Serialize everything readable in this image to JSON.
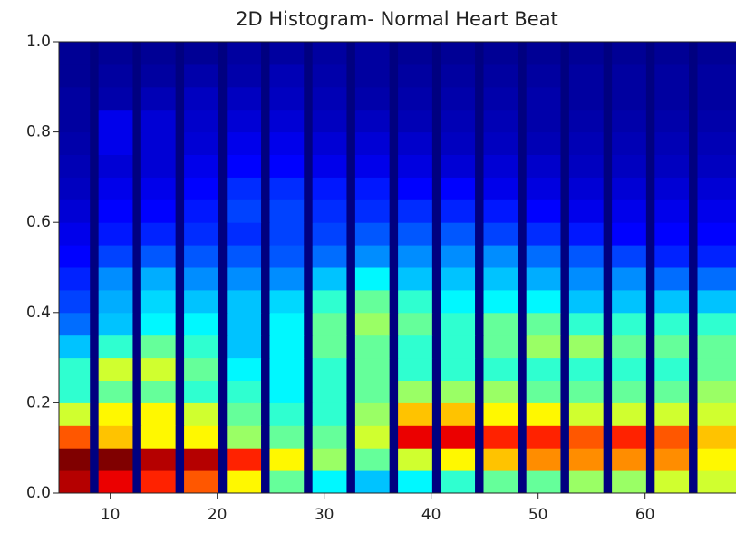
{
  "chart_data": {
    "type": "hist2d",
    "title": "2D Histogram- Normal Heart Beat",
    "colormap": "jet",
    "xlim": [
      5.2,
      68.5
    ],
    "ylim": [
      0,
      1
    ],
    "xticks": [
      10,
      20,
      30,
      40,
      50,
      60
    ],
    "yticks": [
      {
        "value": 0,
        "label": "0.0"
      },
      0.2,
      0.4,
      0.6,
      0.8,
      {
        "value": 1,
        "label": "1.0"
      }
    ],
    "xbins": [
      5.2,
      8.1,
      8.9,
      12.1,
      12.9,
      16.1,
      16.9,
      20.1,
      20.9,
      24.1,
      24.9,
      28.1,
      28.9,
      32.1,
      32.9,
      36.1,
      36.9,
      40.1,
      40.9,
      44.1,
      44.9,
      48.1,
      48.9,
      52.1,
      52.9,
      56.1,
      56.9,
      60.1,
      60.9,
      64.1,
      64.9,
      68.5
    ],
    "ybins": [
      0,
      0.05,
      0.1,
      0.15,
      0.2,
      0.25,
      0.3,
      0.35,
      0.4,
      0.45,
      0.5,
      0.55,
      0.6,
      0.65,
      0.7,
      0.75,
      0.8,
      0.85,
      0.9,
      0.95,
      1
    ],
    "z": [
      [
        90,
        0,
        85,
        0,
        80,
        0,
        75,
        0,
        60,
        0,
        45,
        0,
        35,
        0,
        30,
        0,
        35,
        0,
        40,
        0,
        45,
        0,
        45,
        0,
        50,
        0,
        50,
        0,
        55,
        0,
        55
      ],
      [
        95,
        0,
        95,
        0,
        90,
        0,
        90,
        0,
        80,
        0,
        60,
        0,
        50,
        0,
        45,
        0,
        55,
        0,
        60,
        0,
        65,
        0,
        70,
        0,
        70,
        0,
        70,
        0,
        70,
        0,
        60
      ],
      [
        75,
        0,
        65,
        0,
        60,
        0,
        60,
        0,
        50,
        0,
        45,
        0,
        45,
        0,
        55,
        0,
        85,
        0,
        85,
        0,
        80,
        0,
        80,
        0,
        75,
        0,
        80,
        0,
        75,
        0,
        65
      ],
      [
        55,
        0,
        60,
        0,
        60,
        0,
        55,
        0,
        45,
        0,
        40,
        0,
        40,
        0,
        50,
        0,
        65,
        0,
        65,
        0,
        60,
        0,
        60,
        0,
        55,
        0,
        55,
        0,
        55,
        0,
        55
      ],
      [
        40,
        0,
        45,
        0,
        45,
        0,
        40,
        0,
        40,
        0,
        35,
        0,
        40,
        0,
        45,
        0,
        50,
        0,
        50,
        0,
        50,
        0,
        45,
        0,
        45,
        0,
        45,
        0,
        45,
        0,
        50
      ],
      [
        40,
        0,
        55,
        0,
        55,
        0,
        45,
        0,
        35,
        0,
        35,
        0,
        40,
        0,
        45,
        0,
        40,
        0,
        40,
        0,
        40,
        0,
        40,
        0,
        40,
        0,
        40,
        0,
        40,
        0,
        45
      ],
      [
        30,
        0,
        40,
        0,
        45,
        0,
        40,
        0,
        30,
        0,
        35,
        0,
        45,
        0,
        45,
        0,
        40,
        0,
        40,
        0,
        45,
        0,
        50,
        0,
        50,
        0,
        45,
        0,
        45,
        0,
        45
      ],
      [
        22,
        0,
        30,
        0,
        35,
        0,
        35,
        0,
        30,
        0,
        35,
        0,
        45,
        0,
        50,
        0,
        45,
        0,
        40,
        0,
        45,
        0,
        45,
        0,
        40,
        0,
        40,
        0,
        40,
        0,
        40
      ],
      [
        18,
        0,
        28,
        0,
        32,
        0,
        30,
        0,
        30,
        0,
        32,
        0,
        40,
        0,
        45,
        0,
        40,
        0,
        35,
        0,
        35,
        0,
        35,
        0,
        30,
        0,
        30,
        0,
        30,
        0,
        30
      ],
      [
        15,
        0,
        25,
        0,
        28,
        0,
        25,
        0,
        25,
        0,
        25,
        0,
        30,
        0,
        35,
        0,
        30,
        0,
        30,
        0,
        30,
        0,
        28,
        0,
        25,
        0,
        25,
        0,
        22,
        0,
        22
      ],
      [
        12,
        0,
        18,
        0,
        20,
        0,
        20,
        0,
        20,
        0,
        20,
        0,
        22,
        0,
        25,
        0,
        25,
        0,
        25,
        0,
        25,
        0,
        22,
        0,
        20,
        0,
        18,
        0,
        15,
        0,
        15
      ],
      [
        10,
        0,
        14,
        0,
        15,
        0,
        16,
        0,
        16,
        0,
        18,
        0,
        18,
        0,
        20,
        0,
        20,
        0,
        20,
        0,
        18,
        0,
        16,
        0,
        14,
        0,
        12,
        0,
        12,
        0,
        12
      ],
      [
        8,
        0,
        12,
        0,
        12,
        0,
        14,
        0,
        18,
        0,
        18,
        0,
        16,
        0,
        16,
        0,
        16,
        0,
        15,
        0,
        14,
        0,
        12,
        0,
        10,
        0,
        10,
        0,
        10,
        0,
        10
      ],
      [
        6,
        0,
        10,
        0,
        10,
        0,
        12,
        0,
        16,
        0,
        16,
        0,
        14,
        0,
        14,
        0,
        12,
        0,
        12,
        0,
        10,
        0,
        9,
        0,
        8,
        0,
        8,
        0,
        8,
        0,
        8
      ],
      [
        5,
        0,
        8,
        0,
        8,
        0,
        10,
        0,
        12,
        0,
        12,
        0,
        10,
        0,
        10,
        0,
        9,
        0,
        8,
        0,
        8,
        0,
        7,
        0,
        6,
        0,
        6,
        0,
        6,
        0,
        6
      ],
      [
        4,
        0,
        10,
        0,
        8,
        0,
        8,
        0,
        10,
        0,
        10,
        0,
        8,
        0,
        8,
        0,
        7,
        0,
        6,
        0,
        6,
        0,
        5,
        0,
        5,
        0,
        5,
        0,
        5,
        0,
        5
      ],
      [
        3,
        0,
        10,
        0,
        8,
        0,
        7,
        0,
        8,
        0,
        8,
        0,
        6,
        0,
        6,
        0,
        5,
        0,
        5,
        0,
        5,
        0,
        4,
        0,
        4,
        0,
        4,
        0,
        4,
        0,
        4
      ],
      [
        3,
        0,
        4,
        0,
        5,
        0,
        6,
        0,
        6,
        0,
        6,
        0,
        5,
        0,
        4,
        0,
        4,
        0,
        4,
        0,
        4,
        0,
        4,
        0,
        3,
        0,
        3,
        0,
        3,
        0,
        3
      ],
      [
        2,
        0,
        3,
        0,
        3,
        0,
        4,
        0,
        4,
        0,
        5,
        0,
        4,
        0,
        3,
        0,
        3,
        0,
        3,
        0,
        3,
        0,
        3,
        0,
        3,
        0,
        3,
        0,
        3,
        0,
        3
      ],
      [
        2,
        0,
        2,
        0,
        2,
        0,
        2,
        0,
        3,
        0,
        3,
        0,
        3,
        0,
        3,
        0,
        2,
        0,
        2,
        0,
        2,
        0,
        2,
        0,
        2,
        0,
        2,
        0,
        2,
        0,
        2
      ]
    ]
  }
}
